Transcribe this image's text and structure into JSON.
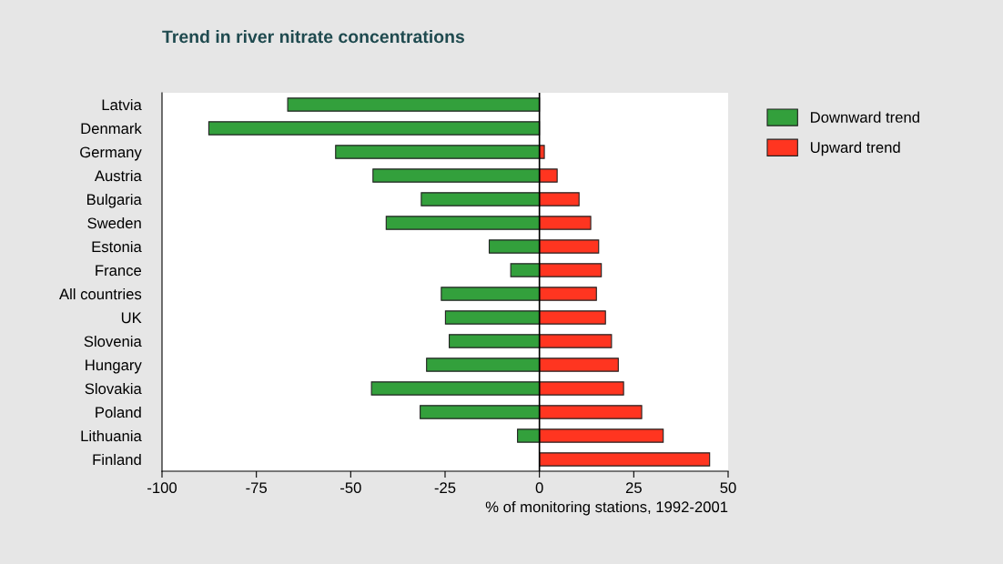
{
  "chart_data": {
    "type": "bar",
    "orientation": "horizontal",
    "stacked": true,
    "title": "Trend in river nitrate concentrations",
    "xlabel": "% of monitoring stations, 1992-2001",
    "categories": [
      "Latvia",
      "Denmark",
      "Germany",
      "Austria",
      "Bulgaria",
      "Sweden",
      "Estonia",
      "France",
      "All countries",
      "UK",
      "Slovenia",
      "Hungary",
      "Slovakia",
      "Poland",
      "Lithuania",
      "Finland"
    ],
    "series": [
      {
        "name": "Downward trend",
        "color": "#33a03c",
        "values": [
          -66.7,
          -87.6,
          -54,
          -44.1,
          -31.3,
          -40.6,
          -13.3,
          -7.6,
          -26,
          -24.9,
          -23.9,
          -29.9,
          -44.5,
          -31.6,
          -5.8,
          null
        ]
      },
      {
        "name": "Upward trend",
        "color": "#ff3520",
        "values": [
          null,
          null,
          1.3,
          4.7,
          10.5,
          13.6,
          15.7,
          16.4,
          15.1,
          17.5,
          19.1,
          20.9,
          22.3,
          27.1,
          32.8,
          45.1
        ]
      }
    ],
    "xlim": [
      -100,
      50
    ],
    "xticks": [
      -100,
      -75,
      -50,
      -25,
      0,
      25,
      50
    ],
    "ref_lines": [
      {
        "axis": "x",
        "value": 0,
        "color": "#000000"
      }
    ],
    "grid": false,
    "legend": "top right"
  }
}
